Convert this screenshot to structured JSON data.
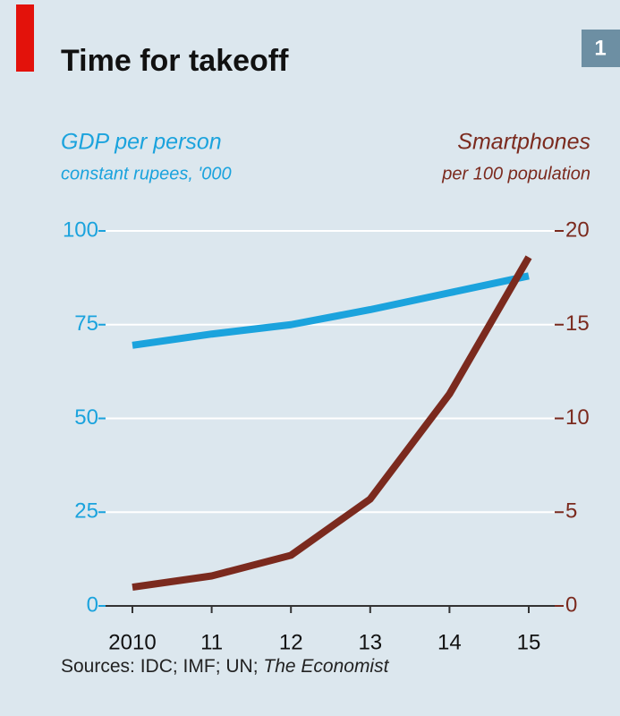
{
  "chart_data": {
    "type": "line",
    "title": "Time for takeoff",
    "badge": "1",
    "y_label": "GDP per person",
    "y_sublabel": "constant rupees, '000",
    "y2_label": "Smartphones",
    "y2_sublabel": "per 100 population",
    "categories": [
      "2010",
      "11",
      "12",
      "13",
      "14",
      "15"
    ],
    "series": [
      {
        "name": "GDP per person",
        "color": "#1ba3dd",
        "values": [
          69.5,
          72.5,
          75,
          79,
          83.5,
          88
        ]
      },
      {
        "name": "Smartphones",
        "color": "#7b2a1e",
        "axis": "y2",
        "values": [
          1.0,
          1.6,
          2.7,
          5.7,
          11.3,
          18.6
        ]
      }
    ],
    "ylim": [
      0,
      100
    ],
    "yticks": [
      0,
      25,
      50,
      75,
      100
    ],
    "y2lim": [
      0,
      20
    ],
    "y2ticks": [
      0,
      5,
      10,
      15,
      20
    ],
    "grid": true,
    "source": "Sources: IDC; IMF; UN;",
    "source_italic": "The Economist"
  }
}
